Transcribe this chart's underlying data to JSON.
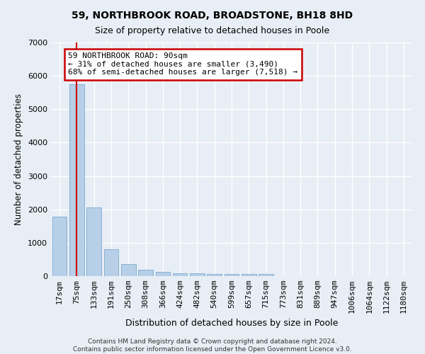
{
  "title1": "59, NORTHBROOK ROAD, BROADSTONE, BH18 8HD",
  "title2": "Size of property relative to detached houses in Poole",
  "xlabel": "Distribution of detached houses by size in Poole",
  "ylabel": "Number of detached properties",
  "categories": [
    "17sqm",
    "75sqm",
    "133sqm",
    "191sqm",
    "250sqm",
    "308sqm",
    "366sqm",
    "424sqm",
    "482sqm",
    "540sqm",
    "599sqm",
    "657sqm",
    "715sqm",
    "773sqm",
    "831sqm",
    "889sqm",
    "947sqm",
    "1006sqm",
    "1064sqm",
    "1122sqm",
    "1180sqm"
  ],
  "values": [
    1780,
    5750,
    2050,
    810,
    360,
    200,
    120,
    95,
    95,
    70,
    60,
    55,
    55,
    0,
    0,
    0,
    0,
    0,
    0,
    0,
    0
  ],
  "bar_color": "#b8cfe8",
  "bar_edge_color": "#7aaad0",
  "annotation_text_line1": "59 NORTHBROOK ROAD: 90sqm",
  "annotation_text_line2": "← 31% of detached houses are smaller (3,490)",
  "annotation_text_line3": "68% of semi-detached houses are larger (7,518) →",
  "annotation_box_facecolor": "#ffffff",
  "annotation_box_edgecolor": "#cc0000",
  "red_line_x": 1,
  "footnote1": "Contains HM Land Registry data © Crown copyright and database right 2024.",
  "footnote2": "Contains public sector information licensed under the Open Government Licence v3.0.",
  "ylim": [
    0,
    7000
  ],
  "yticks": [
    0,
    1000,
    2000,
    3000,
    4000,
    5000,
    6000,
    7000
  ],
  "bg_color": "#e8eef5",
  "grid_color": "#ffffff"
}
